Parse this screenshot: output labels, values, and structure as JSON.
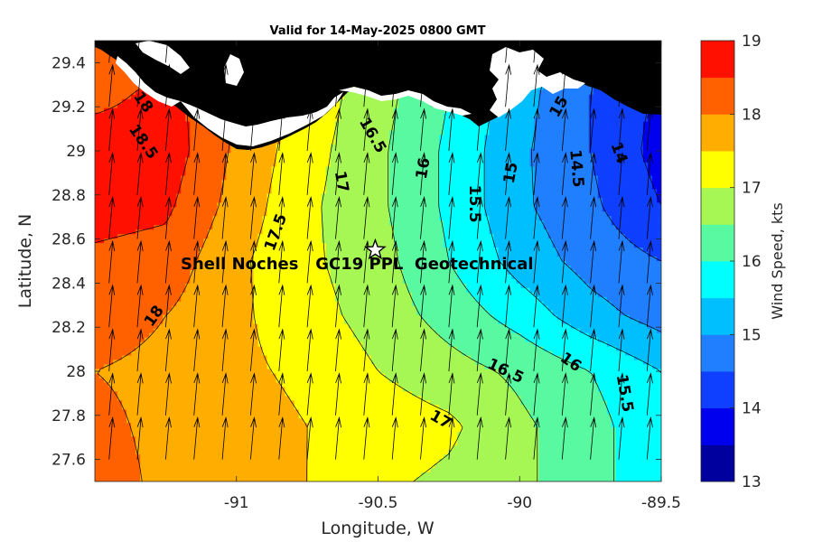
{
  "title": "Valid for 14-May-2025 0800 GMT",
  "annotation": "Shell Noches   GC19 PPL  Geotechnical",
  "site_marker": {
    "lon": -90.51,
    "lat": 28.55,
    "icon": "star-icon"
  },
  "chart_data": {
    "type": "heatmap",
    "xlabel": "Longitude, W",
    "ylabel": "Latitude, N",
    "xlim": [
      -91.5,
      -89.5
    ],
    "ylim": [
      27.5,
      29.5
    ],
    "x_ticks": [
      {
        "value": -91,
        "label": "-91"
      },
      {
        "value": -90.5,
        "label": "-90.5"
      },
      {
        "value": -90,
        "label": "-90"
      },
      {
        "value": -89.5,
        "label": "-89.5"
      }
    ],
    "y_ticks": [
      {
        "value": 27.6,
        "label": "27.6"
      },
      {
        "value": 27.8,
        "label": "27.8"
      },
      {
        "value": 28.0,
        "label": "28"
      },
      {
        "value": 28.2,
        "label": "28.2"
      },
      {
        "value": 28.4,
        "label": "28.4"
      },
      {
        "value": 28.6,
        "label": "28.6"
      },
      {
        "value": 28.8,
        "label": "28.8"
      },
      {
        "value": 29.0,
        "label": "29"
      },
      {
        "value": 29.2,
        "label": "29.2"
      },
      {
        "value": 29.4,
        "label": "29.4"
      }
    ],
    "colorbar": {
      "label": "Wind Speed, kts",
      "min": 13,
      "max": 19,
      "step": 0.5,
      "tick_labels": [
        "13",
        "14",
        "15",
        "16",
        "17",
        "18",
        "19"
      ],
      "colors": [
        "#00009f",
        "#0000ef",
        "#0f3fff",
        "#207fff",
        "#00bfff",
        "#00ffff",
        "#58f9a0",
        "#a6f754",
        "#ffff00",
        "#ffae00",
        "#ff6000",
        "#ff1000",
        "#ad0000"
      ]
    },
    "contour_labels": [
      {
        "text": "18",
        "lon": -91.33,
        "lat": 29.22,
        "angle": 55
      },
      {
        "text": "18.5",
        "lon": -91.33,
        "lat": 29.04,
        "angle": 55
      },
      {
        "text": "17.5",
        "lon": -90.86,
        "lat": 28.63,
        "angle": -70
      },
      {
        "text": "17",
        "lon": -90.63,
        "lat": 28.86,
        "angle": 80
      },
      {
        "text": "16.5",
        "lon": -90.52,
        "lat": 29.07,
        "angle": 60
      },
      {
        "text": "16",
        "lon": -90.34,
        "lat": 28.92,
        "angle": -80
      },
      {
        "text": "15.5",
        "lon": -90.16,
        "lat": 28.76,
        "angle": 90
      },
      {
        "text": "15",
        "lon": -90.03,
        "lat": 28.9,
        "angle": -80
      },
      {
        "text": "15",
        "lon": -89.86,
        "lat": 29.2,
        "angle": -60
      },
      {
        "text": "14.5",
        "lon": -89.8,
        "lat": 28.92,
        "angle": 85
      },
      {
        "text": "14",
        "lon": -89.65,
        "lat": 28.99,
        "angle": 70
      },
      {
        "text": "18",
        "lon": -91.29,
        "lat": 28.25,
        "angle": -55
      },
      {
        "text": "16.5",
        "lon": -90.05,
        "lat": 28.0,
        "angle": 25
      },
      {
        "text": "16",
        "lon": -89.82,
        "lat": 28.04,
        "angle": 35
      },
      {
        "text": "15.5",
        "lon": -89.63,
        "lat": 27.9,
        "angle": 80
      },
      {
        "text": "17",
        "lon": -90.28,
        "lat": 27.78,
        "angle": 30
      }
    ],
    "grid_lon": [
      -91.5,
      -91.25,
      -91.0,
      -90.75,
      -90.5,
      -90.25,
      -90.0,
      -89.75,
      -89.5
    ],
    "grid_lat": [
      29.5,
      29.25,
      29.0,
      28.75,
      28.5,
      28.25,
      28.0,
      27.75,
      27.5
    ],
    "wind_speed_kts": [
      [
        18.0,
        18.2,
        17.6,
        17.2,
        16.5,
        16.0,
        15.3,
        14.6,
        14.0
      ],
      [
        18.3,
        18.7,
        18.0,
        17.3,
        16.7,
        16.0,
        15.2,
        14.5,
        13.9
      ],
      [
        18.9,
        18.8,
        17.9,
        17.2,
        16.6,
        15.9,
        15.1,
        14.5,
        13.8
      ],
      [
        18.7,
        18.6,
        17.8,
        17.1,
        16.6,
        15.9,
        15.1,
        14.6,
        14.0
      ],
      [
        18.4,
        18.3,
        17.6,
        17.1,
        16.7,
        16.0,
        15.3,
        14.8,
        14.5
      ],
      [
        18.2,
        18.0,
        17.6,
        17.2,
        16.8,
        16.3,
        15.8,
        15.2,
        14.8
      ],
      [
        18.0,
        17.9,
        17.6,
        17.4,
        17.0,
        16.7,
        16.4,
        16.0,
        15.5
      ],
      [
        18.1,
        17.9,
        17.7,
        17.5,
        17.3,
        17.1,
        16.6,
        16.2,
        15.6
      ],
      [
        18.2,
        17.9,
        17.7,
        17.5,
        17.1,
        16.9,
        16.6,
        16.2,
        15.6
      ]
    ],
    "wind_arrows": {
      "lon": [
        -91.45,
        -91.35,
        -91.25,
        -91.15,
        -91.05,
        -90.95,
        -90.85,
        -90.75,
        -90.65,
        -90.55,
        -90.45,
        -90.35,
        -90.25,
        -90.15,
        -90.05,
        -89.95,
        -89.85,
        -89.75,
        -89.65,
        -89.55
      ],
      "lat": [
        27.6,
        27.8,
        28.0,
        28.2,
        28.4,
        28.6,
        28.8,
        29.0,
        29.2,
        29.4
      ],
      "direction_deg": 5,
      "length_deg_lat": 0.19
    },
    "land": "black",
    "grid": false
  }
}
